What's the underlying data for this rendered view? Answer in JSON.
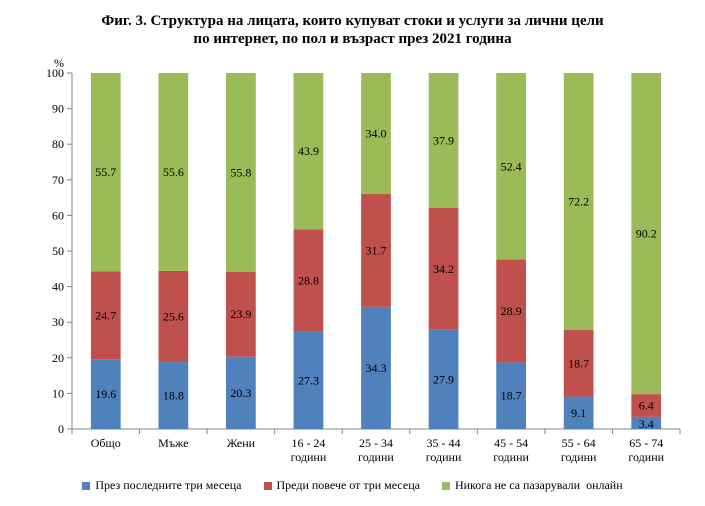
{
  "chart_data": {
    "type": "bar",
    "stacked": true,
    "title_lines": [
      "Фиг. 3. Структура на лицата, които купуват стоки и услуги за лични цели",
      "по интернет, по пол и възраст през 2021 година"
    ],
    "ylabel": "%",
    "ylim": [
      0,
      100
    ],
    "yticks": [
      0,
      10,
      20,
      30,
      40,
      50,
      60,
      70,
      80,
      90,
      100
    ],
    "grid": false,
    "legend_position": "bottom",
    "categories": [
      [
        "Общо"
      ],
      [
        "Мъже"
      ],
      [
        "Жени"
      ],
      [
        "16 - 24",
        "години"
      ],
      [
        "25 - 34",
        "години"
      ],
      [
        "35 - 44",
        "години"
      ],
      [
        "45 - 54",
        "години"
      ],
      [
        "55 - 64",
        "години"
      ],
      [
        "65 - 74",
        "години"
      ]
    ],
    "series": [
      {
        "name": "През последните три месеца",
        "color": "#4f81bd",
        "values": [
          19.6,
          18.8,
          20.3,
          27.3,
          34.3,
          27.9,
          18.7,
          9.1,
          3.4
        ]
      },
      {
        "name": "Преди повече от три месеца",
        "color": "#c0504d",
        "values": [
          24.7,
          25.6,
          23.9,
          28.8,
          31.7,
          34.2,
          28.9,
          18.7,
          6.4
        ]
      },
      {
        "name": "Никога не са пазарували  онлайн",
        "color": "#9bbb59",
        "values": [
          55.7,
          55.6,
          55.8,
          43.9,
          34.0,
          37.9,
          52.4,
          72.2,
          90.2
        ]
      }
    ]
  }
}
